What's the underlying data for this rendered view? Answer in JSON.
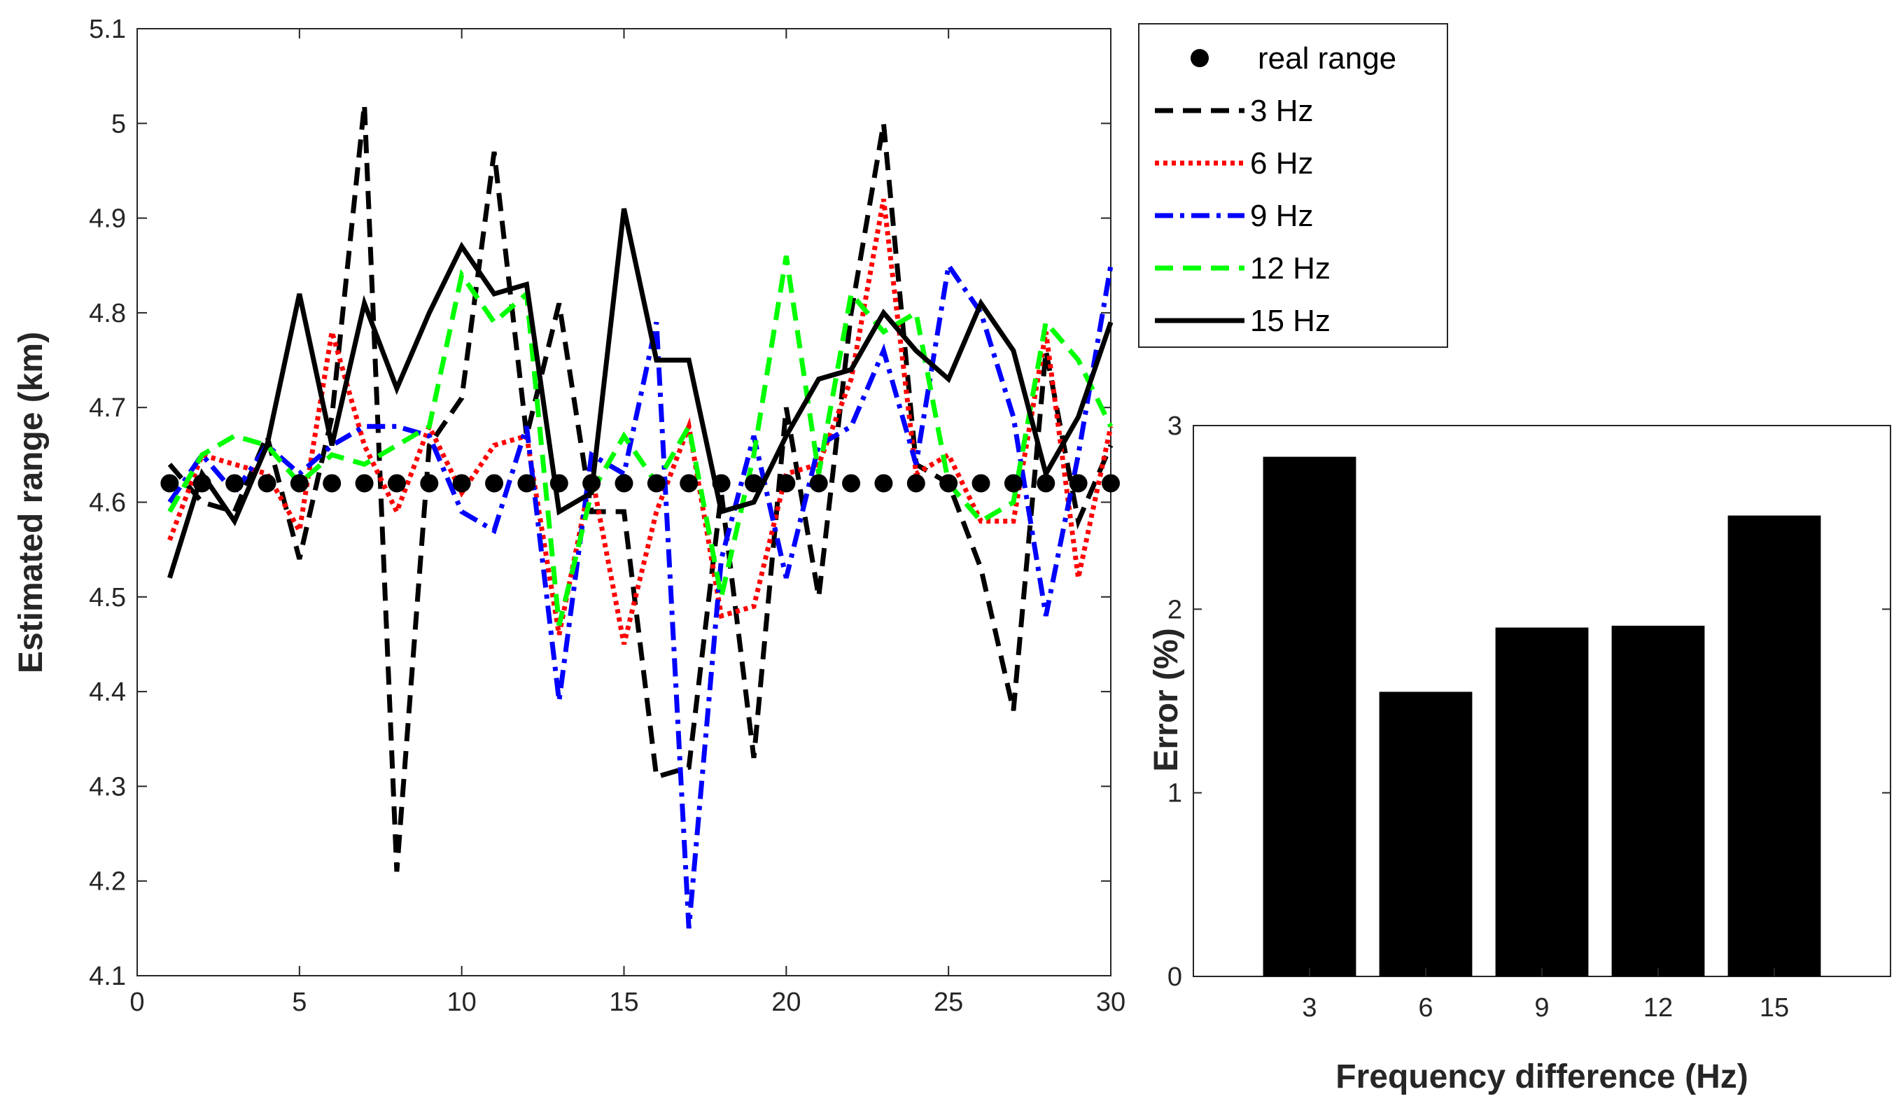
{
  "chart_data": [
    {
      "type": "line",
      "title": "",
      "xlabel": "",
      "ylabel": "Estimated range (km)",
      "xlim": [
        0,
        30
      ],
      "ylim": [
        4.1,
        5.1
      ],
      "xticks": [
        "0",
        "5",
        "10",
        "15",
        "20",
        "25",
        "30"
      ],
      "yticks": [
        "4.1",
        "4.2",
        "4.3",
        "4.4",
        "4.5",
        "4.6",
        "4.7",
        "4.8",
        "4.9",
        "5",
        "5.1"
      ],
      "grid": false,
      "legend_position": "outside-right-top",
      "x": [
        1,
        2,
        3,
        4,
        5,
        6,
        7,
        8,
        9,
        10,
        11,
        12,
        13,
        14,
        15,
        16,
        17,
        18,
        19,
        20,
        21,
        22,
        23,
        24,
        25,
        26,
        27,
        28,
        29,
        30
      ],
      "series": [
        {
          "name": "real range",
          "style": "dots",
          "color": "#000000",
          "values": [
            4.62,
            4.62,
            4.62,
            4.62,
            4.62,
            4.62,
            4.62,
            4.62,
            4.62,
            4.62,
            4.62,
            4.62,
            4.62,
            4.62,
            4.62,
            4.62,
            4.62,
            4.62,
            4.62,
            4.62,
            4.62,
            4.62,
            4.62,
            4.62,
            4.62,
            4.62,
            4.62,
            4.62,
            4.62,
            4.62
          ]
        },
        {
          "name": "3 Hz",
          "style": "dashed",
          "color": "#000000",
          "values": [
            4.64,
            4.6,
            4.59,
            4.67,
            4.54,
            4.69,
            5.02,
            4.21,
            4.66,
            4.71,
            4.97,
            4.67,
            4.81,
            4.59,
            4.59,
            4.31,
            4.32,
            4.61,
            4.33,
            4.7,
            4.5,
            4.8,
            5.0,
            4.64,
            4.62,
            4.53,
            4.38,
            4.76,
            4.58,
            4.66
          ]
        },
        {
          "name": "6 Hz",
          "style": "dotted",
          "color": "#ff0000",
          "values": [
            4.56,
            4.65,
            4.64,
            4.63,
            4.57,
            4.78,
            4.66,
            4.59,
            4.68,
            4.61,
            4.66,
            4.67,
            4.46,
            4.63,
            4.45,
            4.59,
            4.68,
            4.48,
            4.49,
            4.63,
            4.64,
            4.73,
            4.92,
            4.63,
            4.65,
            4.58,
            4.58,
            4.78,
            4.52,
            4.68
          ]
        },
        {
          "name": "9 Hz",
          "style": "dashdot",
          "color": "#0000ff",
          "values": [
            4.6,
            4.65,
            4.61,
            4.66,
            4.63,
            4.66,
            4.68,
            4.68,
            4.67,
            4.59,
            4.57,
            4.68,
            4.39,
            4.65,
            4.63,
            4.79,
            4.15,
            4.54,
            4.67,
            4.52,
            4.66,
            4.68,
            4.76,
            4.64,
            4.85,
            4.8,
            4.69,
            4.48,
            4.65,
            4.85
          ]
        },
        {
          "name": "12 Hz",
          "style": "dashed",
          "color": "#00ff00",
          "values": [
            4.59,
            4.65,
            4.67,
            4.66,
            4.62,
            4.65,
            4.64,
            4.66,
            4.68,
            4.84,
            4.79,
            4.82,
            4.47,
            4.61,
            4.67,
            4.62,
            4.68,
            4.5,
            4.65,
            4.86,
            4.63,
            4.82,
            4.78,
            4.8,
            4.62,
            4.58,
            4.6,
            4.79,
            4.75,
            4.68
          ]
        },
        {
          "name": "15 Hz",
          "style": "solid",
          "color": "#000000",
          "values": [
            4.52,
            4.63,
            4.58,
            4.66,
            4.82,
            4.66,
            4.81,
            4.72,
            4.8,
            4.87,
            4.82,
            4.83,
            4.59,
            4.61,
            4.91,
            4.75,
            4.75,
            4.59,
            4.6,
            4.67,
            4.73,
            4.74,
            4.8,
            4.76,
            4.73,
            4.81,
            4.76,
            4.63,
            4.69,
            4.79
          ]
        }
      ]
    },
    {
      "type": "bar",
      "title": "",
      "xlabel": "Frequency difference (Hz)",
      "ylabel": "Error (%)",
      "ylim": [
        0,
        3
      ],
      "yticks": [
        "0",
        "1",
        "2",
        "3"
      ],
      "categories": [
        "3",
        "6",
        "9",
        "12",
        "15"
      ],
      "values": [
        2.83,
        1.55,
        1.9,
        1.91,
        2.51
      ],
      "color": "#000000",
      "grid": false
    }
  ],
  "colors": {
    "axis": "#262626",
    "background": "#ffffff"
  }
}
